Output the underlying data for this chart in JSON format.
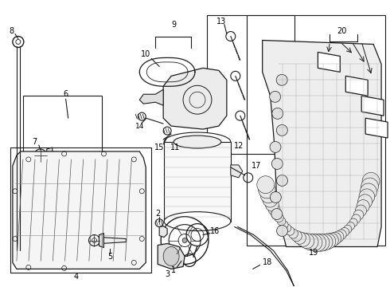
{
  "background_color": "#ffffff",
  "line_color": "#1a1a1a",
  "text_color": "#000000",
  "fig_width": 4.9,
  "fig_height": 3.6,
  "dpi": 100
}
